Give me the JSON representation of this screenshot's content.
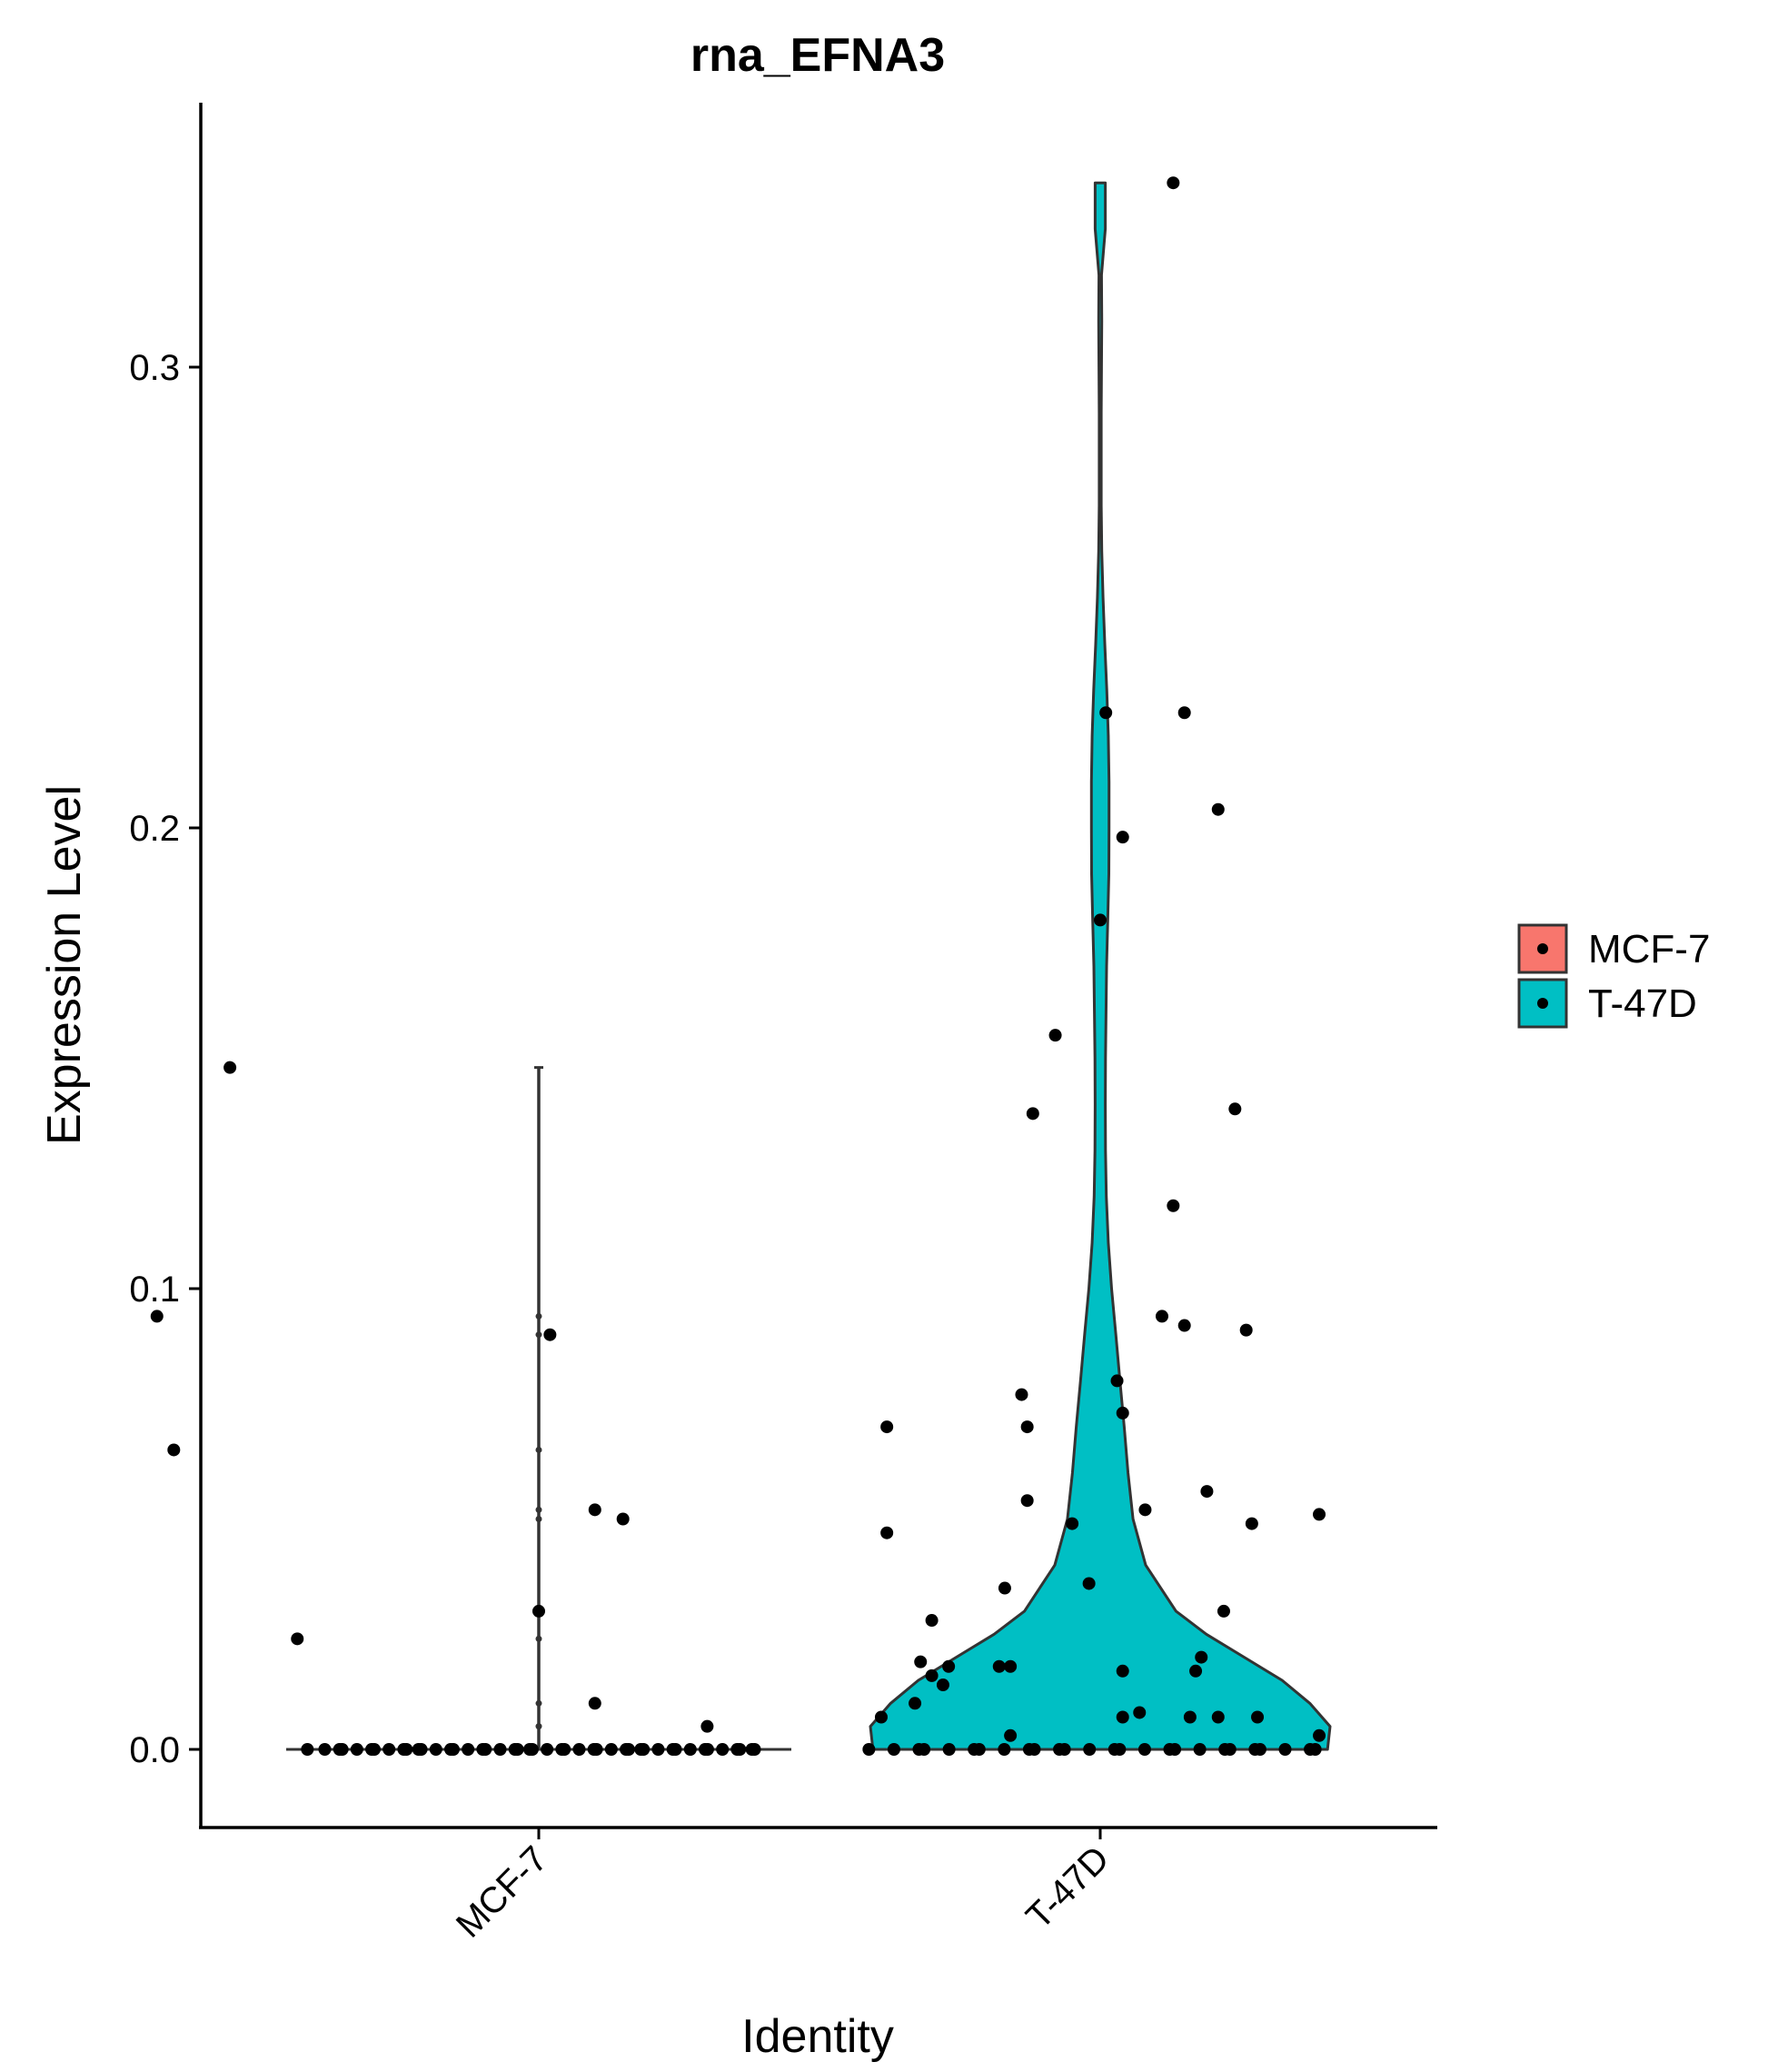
{
  "chart_data": {
    "type": "violin",
    "title": "rna_EFNA3",
    "xlabel": "Identity",
    "ylabel": "Expression Level",
    "categories": [
      "MCF-7",
      "T-47D"
    ],
    "ylim": [
      -0.017,
      0.357
    ],
    "yticks": [
      0.0,
      0.1,
      0.2,
      0.3
    ],
    "ytick_labels": [
      "0.0",
      "0.1",
      "0.2",
      "0.3"
    ],
    "legend": {
      "position": "right",
      "entries": [
        "MCF-7",
        "T-47D"
      ]
    },
    "colors": {
      "MCF-7": "#F8766D",
      "T-47D": "#00BFC4",
      "outline": "#333333",
      "points": "#000000"
    },
    "grid": false,
    "series": [
      {
        "name": "MCF-7",
        "max": 0.148,
        "points": [
          {
            "x": 0.45,
            "y": 0.148
          },
          {
            "x": 0.32,
            "y": 0.094
          },
          {
            "x": 0.35,
            "y": 0.065
          },
          {
            "x": 1.02,
            "y": 0.09
          },
          {
            "x": 1.0,
            "y": 0.03
          },
          {
            "x": 0.57,
            "y": 0.024
          },
          {
            "x": 1.1,
            "y": 0.052
          },
          {
            "x": 1.15,
            "y": 0.05
          },
          {
            "x": 1.1,
            "y": 0.01
          },
          {
            "x": 1.3,
            "y": 0.005
          }
        ],
        "zero_count": 45
      },
      {
        "name": "T-47D",
        "max": 0.34,
        "violin_density": [
          {
            "y": 0.0,
            "w": 0.9
          },
          {
            "y": 0.005,
            "w": 0.91
          },
          {
            "y": 0.01,
            "w": 0.83
          },
          {
            "y": 0.015,
            "w": 0.72
          },
          {
            "y": 0.02,
            "w": 0.57
          },
          {
            "y": 0.025,
            "w": 0.42
          },
          {
            "y": 0.03,
            "w": 0.3
          },
          {
            "y": 0.04,
            "w": 0.18
          },
          {
            "y": 0.05,
            "w": 0.13
          },
          {
            "y": 0.06,
            "w": 0.11
          },
          {
            "y": 0.07,
            "w": 0.095
          },
          {
            "y": 0.08,
            "w": 0.078
          },
          {
            "y": 0.09,
            "w": 0.062
          },
          {
            "y": 0.1,
            "w": 0.045
          },
          {
            "y": 0.11,
            "w": 0.032
          },
          {
            "y": 0.12,
            "w": 0.024
          },
          {
            "y": 0.13,
            "w": 0.021
          },
          {
            "y": 0.14,
            "w": 0.02
          },
          {
            "y": 0.15,
            "w": 0.021
          },
          {
            "y": 0.16,
            "w": 0.023
          },
          {
            "y": 0.17,
            "w": 0.025
          },
          {
            "y": 0.18,
            "w": 0.03
          },
          {
            "y": 0.19,
            "w": 0.034
          },
          {
            "y": 0.2,
            "w": 0.035
          },
          {
            "y": 0.21,
            "w": 0.035
          },
          {
            "y": 0.22,
            "w": 0.032
          },
          {
            "y": 0.23,
            "w": 0.026
          },
          {
            "y": 0.24,
            "w": 0.018
          },
          {
            "y": 0.25,
            "w": 0.011
          },
          {
            "y": 0.26,
            "w": 0.006
          },
          {
            "y": 0.27,
            "w": 0.004
          },
          {
            "y": 0.28,
            "w": 0.004
          },
          {
            "y": 0.29,
            "w": 0.004
          },
          {
            "y": 0.3,
            "w": 0.005
          },
          {
            "y": 0.31,
            "w": 0.006
          },
          {
            "y": 0.32,
            "w": 0.005
          },
          {
            "y": 0.33,
            "w": 0.02
          },
          {
            "y": 0.34,
            "w": 0.02
          }
        ],
        "points": [
          {
            "x": 2.13,
            "y": 0.34
          },
          {
            "x": 2.01,
            "y": 0.225
          },
          {
            "x": 2.15,
            "y": 0.225
          },
          {
            "x": 2.21,
            "y": 0.204
          },
          {
            "x": 2.04,
            "y": 0.198
          },
          {
            "x": 2.0,
            "y": 0.18
          },
          {
            "x": 1.92,
            "y": 0.155
          },
          {
            "x": 1.88,
            "y": 0.138
          },
          {
            "x": 2.24,
            "y": 0.139
          },
          {
            "x": 2.13,
            "y": 0.118
          },
          {
            "x": 2.11,
            "y": 0.094
          },
          {
            "x": 2.15,
            "y": 0.092
          },
          {
            "x": 2.26,
            "y": 0.091
          },
          {
            "x": 2.03,
            "y": 0.08
          },
          {
            "x": 1.86,
            "y": 0.077
          },
          {
            "x": 2.04,
            "y": 0.073
          },
          {
            "x": 1.62,
            "y": 0.07
          },
          {
            "x": 1.87,
            "y": 0.07
          },
          {
            "x": 2.19,
            "y": 0.056
          },
          {
            "x": 1.87,
            "y": 0.054
          },
          {
            "x": 2.08,
            "y": 0.052
          },
          {
            "x": 2.39,
            "y": 0.051
          },
          {
            "x": 1.95,
            "y": 0.049
          },
          {
            "x": 2.27,
            "y": 0.049
          },
          {
            "x": 1.62,
            "y": 0.047
          },
          {
            "x": 1.98,
            "y": 0.036
          },
          {
            "x": 1.83,
            "y": 0.035
          },
          {
            "x": 2.22,
            "y": 0.03
          },
          {
            "x": 1.7,
            "y": 0.028
          },
          {
            "x": 2.18,
            "y": 0.02
          },
          {
            "x": 1.68,
            "y": 0.019
          },
          {
            "x": 1.82,
            "y": 0.018
          },
          {
            "x": 1.84,
            "y": 0.018
          },
          {
            "x": 1.73,
            "y": 0.018
          },
          {
            "x": 1.7,
            "y": 0.016
          },
          {
            "x": 2.04,
            "y": 0.017
          },
          {
            "x": 2.17,
            "y": 0.017
          },
          {
            "x": 1.72,
            "y": 0.014
          },
          {
            "x": 1.67,
            "y": 0.01
          },
          {
            "x": 2.07,
            "y": 0.008
          },
          {
            "x": 1.61,
            "y": 0.007
          },
          {
            "x": 2.04,
            "y": 0.007
          },
          {
            "x": 2.16,
            "y": 0.007
          },
          {
            "x": 2.21,
            "y": 0.007
          },
          {
            "x": 2.28,
            "y": 0.007
          },
          {
            "x": 1.84,
            "y": 0.003
          },
          {
            "x": 2.39,
            "y": 0.003
          }
        ],
        "zero_count": 26
      }
    ]
  }
}
